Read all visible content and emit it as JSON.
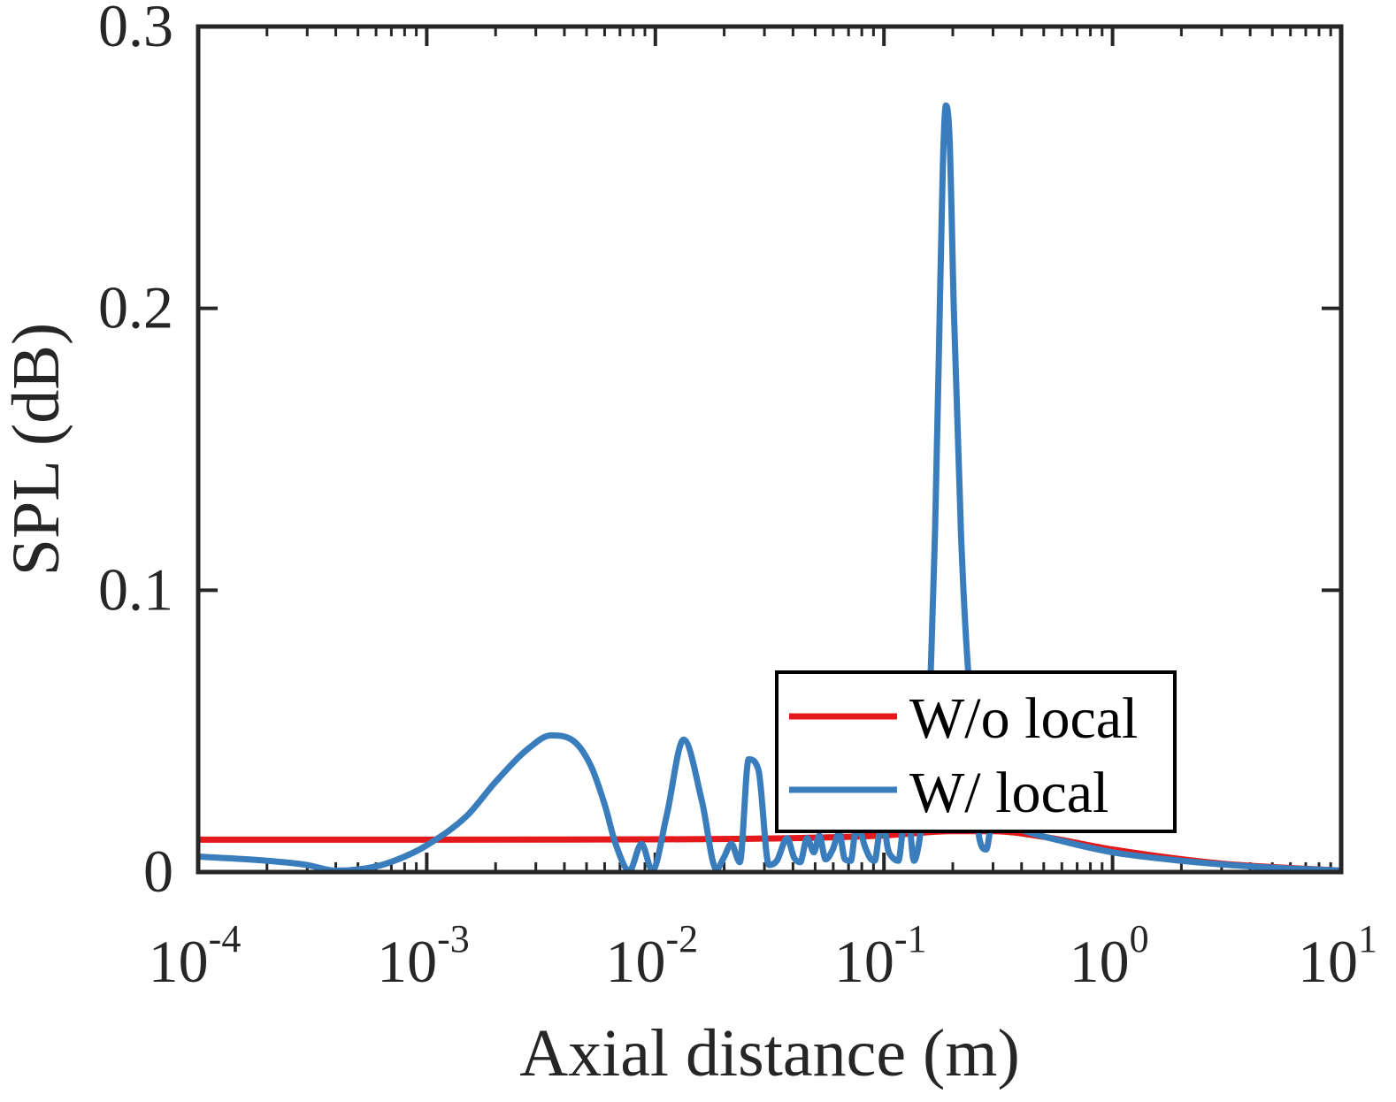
{
  "chart_data": {
    "type": "line",
    "xlabel": "Axial distance (m)",
    "ylabel": "SPL (dB)",
    "xscale": "log",
    "xlim": [
      0.0001,
      10
    ],
    "ylim": [
      0,
      0.3
    ],
    "x_ticks": [
      {
        "value": 0.0001,
        "base": "10",
        "exp": "-4"
      },
      {
        "value": 0.001,
        "base": "10",
        "exp": "-3"
      },
      {
        "value": 0.01,
        "base": "10",
        "exp": "-2"
      },
      {
        "value": 0.1,
        "base": "10",
        "exp": "-1"
      },
      {
        "value": 1,
        "base": "10",
        "exp": "0"
      },
      {
        "value": 10,
        "base": "10",
        "exp": "1"
      }
    ],
    "y_ticks": [
      {
        "value": 0,
        "label": "0"
      },
      {
        "value": 0.1,
        "label": "0.1"
      },
      {
        "value": 0.2,
        "label": "0.2"
      },
      {
        "value": 0.3,
        "label": "0.3"
      }
    ],
    "grid": false,
    "legend_position": "lower-right",
    "series": [
      {
        "name": "W/o local",
        "color": "#e3191c",
        "x": [
          0.0001,
          0.001,
          0.01,
          0.05,
          0.1,
          0.2,
          0.3,
          0.5,
          1,
          3,
          10
        ],
        "y": [
          0.0115,
          0.0115,
          0.0116,
          0.0122,
          0.013,
          0.0145,
          0.0145,
          0.0125,
          0.008,
          0.003,
          0.0005
        ]
      },
      {
        "name": "W/ local",
        "color": "#3a7dbd",
        "x": [
          0.0001,
          0.0002,
          0.0003,
          0.0004,
          0.0006,
          0.0008,
          0.001,
          0.0015,
          0.002,
          0.0028,
          0.0035,
          0.0043,
          0.0052,
          0.006,
          0.0067,
          0.0077,
          0.0087,
          0.0097,
          0.0112,
          0.0133,
          0.016,
          0.0185,
          0.0199,
          0.0215,
          0.0234,
          0.0256,
          0.0282,
          0.0314,
          0.034,
          0.0377,
          0.0405,
          0.043,
          0.0461,
          0.0494,
          0.0521,
          0.0556,
          0.0597,
          0.0637,
          0.0675,
          0.0716,
          0.0751,
          0.0786,
          0.0826,
          0.0869,
          0.0911,
          0.0951,
          0.0993,
          0.1042,
          0.1095,
          0.1156,
          0.1215,
          0.1275,
          0.1353,
          0.1421,
          0.1499,
          0.1545,
          0.16,
          0.1672,
          0.1745,
          0.1809,
          0.1866,
          0.1937,
          0.2021,
          0.2173,
          0.2342,
          0.2467,
          0.2613,
          0.28,
          0.3,
          0.4,
          0.6,
          1.0,
          2.0,
          4.0,
          10.0
        ],
        "y": [
          0.0055,
          0.004,
          0.0025,
          0.0005,
          0.002,
          0.0055,
          0.0095,
          0.02,
          0.032,
          0.044,
          0.0485,
          0.047,
          0.038,
          0.024,
          0.01,
          0.0005,
          0.01,
          0.0005,
          0.02,
          0.047,
          0.025,
          0.001,
          0.005,
          0.01,
          0.0035,
          0.04,
          0.0365,
          0.0025,
          0.004,
          0.012,
          0.005,
          0.0035,
          0.012,
          0.007,
          0.013,
          0.0045,
          0.008,
          0.014,
          0.0045,
          0.004,
          0.014,
          0.014,
          0.009,
          0.005,
          0.004,
          0.013,
          0.017,
          0.008,
          0.005,
          0.004,
          0.016,
          0.02,
          0.004,
          0.01,
          0.025,
          0.035,
          0.07,
          0.12,
          0.19,
          0.25,
          0.272,
          0.26,
          0.2,
          0.12,
          0.07,
          0.055,
          0.012,
          0.008,
          0.02,
          0.015,
          0.011,
          0.007,
          0.004,
          0.002,
          0.0005
        ]
      }
    ]
  }
}
